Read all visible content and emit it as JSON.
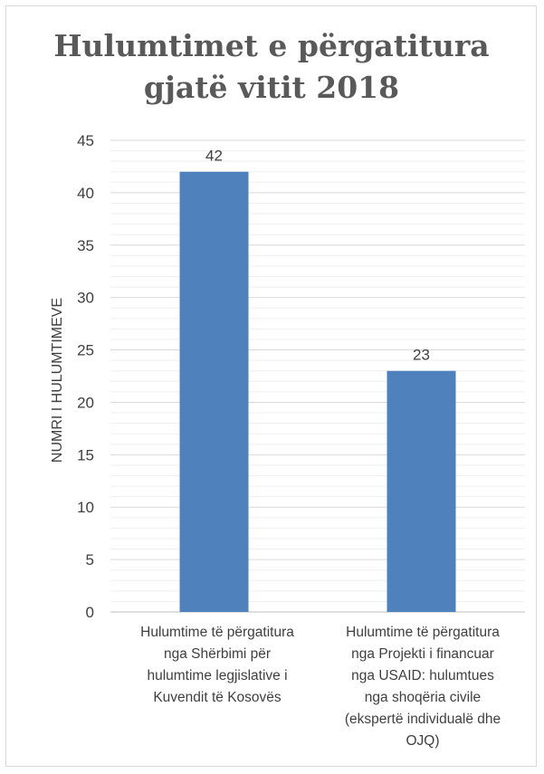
{
  "chart_data": {
    "type": "bar",
    "title_lines": [
      "Hulumtimet e përgatitura",
      "gjatë vitit 2018"
    ],
    "ylabel": "NUMRI I HULUMTIMEVE",
    "xlabel": "",
    "ylim": [
      0,
      45
    ],
    "y_ticks": [
      0,
      5,
      10,
      15,
      20,
      25,
      30,
      35,
      40,
      45
    ],
    "grid": "horizontal major and minor",
    "legend": "none",
    "categories": [
      {
        "label_lines": [
          "Hulumtime të përgatitura",
          "nga Shërbimi për",
          "hulumtime legjislative i",
          "Kuvendit të Kosovës"
        ],
        "value": 42
      },
      {
        "label_lines": [
          "Hulumtime të përgatitura",
          "nga Projekti i financuar",
          "nga USAID: hulumtues",
          "nga shoqëria civile",
          "(ekspertë individualë dhe",
          "OJQ)"
        ],
        "value": 23
      }
    ],
    "colors": {
      "bar": "#4f81bd",
      "major_grid": "#d9d9d9",
      "minor_grid": "#efefef",
      "text": "#404040",
      "title": "#595959"
    }
  }
}
